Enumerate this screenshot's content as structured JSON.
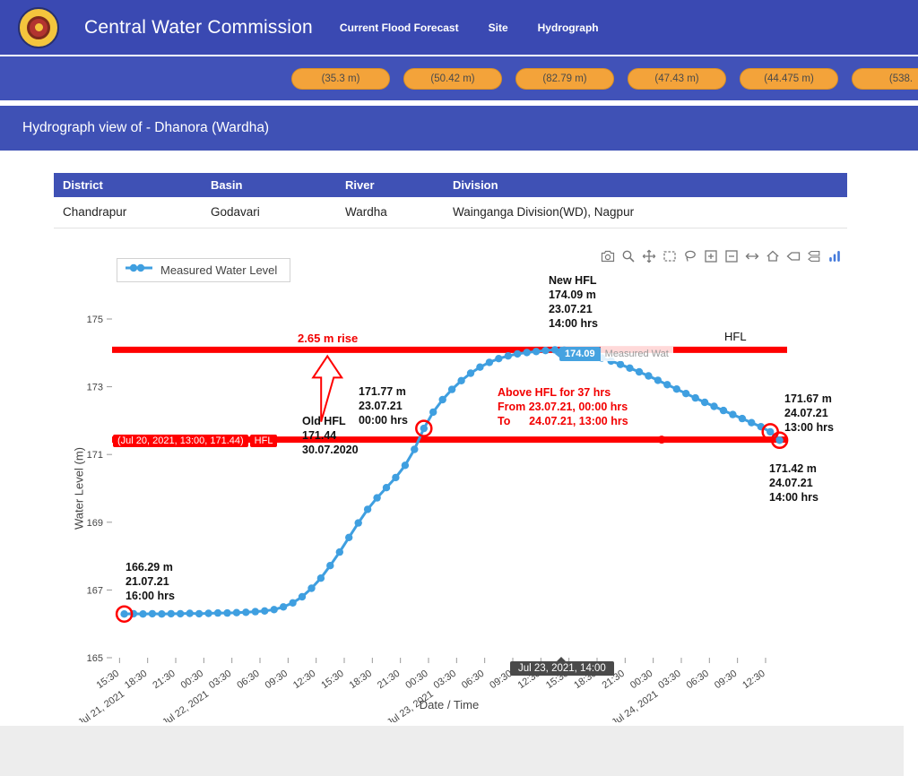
{
  "header": {
    "title": "Central Water Commission",
    "nav": [
      {
        "label": "Current Flood Forecast"
      },
      {
        "label": "Site"
      },
      {
        "label": "Hydrograph"
      }
    ]
  },
  "stations_bar": {
    "buttons": [
      "(35.3 m)",
      "(50.42 m)",
      "(82.79 m)",
      "(47.43 m)",
      "(44.475 m)",
      "(538."
    ]
  },
  "page": {
    "subtitle": "Hydrograph view of - Dhanora (Wardha)"
  },
  "info_table": {
    "headers": [
      "District",
      "Basin",
      "River",
      "Division"
    ],
    "rows": [
      [
        "Chandrapur",
        "Godavari",
        "Wardha",
        "Wainganga Division(WD), Nagpur"
      ]
    ]
  },
  "legend": {
    "label": "Measured Water Level"
  },
  "modebar": {
    "icons": [
      "camera",
      "zoom",
      "pan",
      "box-select",
      "lasso-select",
      "zoom-in",
      "zoom-out",
      "autoscale",
      "reset-axes",
      "hover-closest",
      "hover-compare",
      "plotly-logo"
    ]
  },
  "annotations": {
    "new_hfl": {
      "text": "New HFL\n174.09 m\n23.07.21\n14:00 hrs"
    },
    "rise": {
      "text": "2.65 m rise"
    },
    "crossing": {
      "text": "171.77 m\n23.07.21\n00:00 hrs"
    },
    "old_hfl": {
      "text": "Old HFL\n171.44\n30.07.2020"
    },
    "above_hfl": {
      "text": "Above HFL for 37 hrs\nFrom 23.07.21, 00:00 hrs\nTo      24.07.21, 13:00 hrs"
    },
    "hfl": {
      "text": "HFL"
    },
    "end_1300": {
      "text": "171.67 m\n24.07.21\n13:00 hrs"
    },
    "end_1400": {
      "text": "171.42 m\n24.07.21\n14:00 hrs"
    },
    "start": {
      "text": "166.29 m\n21.07.21\n16:00 hrs"
    }
  },
  "hover_labels": {
    "hfl_hover": {
      "text": "(Jul 20, 2021, 13:00, 171.44)",
      "name": "HFL"
    },
    "peak_hover": {
      "value": "174.09",
      "name": "Measured Wat"
    },
    "axis_tooltip": {
      "text": "Jul 23, 2021, 14:00"
    }
  },
  "chart_data": {
    "type": "line",
    "title": "",
    "xlabel": "Date / Time",
    "ylabel": "Water Level (m)",
    "ylim": [
      165,
      175
    ],
    "yticks": [
      165,
      167,
      169,
      171,
      173,
      175
    ],
    "x_unit": "hours since Jul 21, 2021 15:30",
    "xlim": [
      -0.8,
      71.3
    ],
    "grid": false,
    "legend_position": "top-left",
    "xticks": [
      [
        0,
        "15:30"
      ],
      [
        3,
        "18:30"
      ],
      [
        6,
        "21:30"
      ],
      [
        9,
        "00:30"
      ],
      [
        12,
        "03:30"
      ],
      [
        15,
        "06:30"
      ],
      [
        18,
        "09:30"
      ],
      [
        21,
        "12:30"
      ],
      [
        24,
        "15:30"
      ],
      [
        27,
        "18:30"
      ],
      [
        30,
        "21:30"
      ],
      [
        33,
        "00:30"
      ],
      [
        36,
        "03:30"
      ],
      [
        39,
        "06:30"
      ],
      [
        42,
        "09:30"
      ],
      [
        45,
        "12:30"
      ],
      [
        48,
        "15:30"
      ],
      [
        51,
        "18:30"
      ],
      [
        54,
        "21:30"
      ],
      [
        57,
        "00:30"
      ],
      [
        60,
        "03:30"
      ],
      [
        63,
        "06:30"
      ],
      [
        66,
        "09:30"
      ],
      [
        69,
        "12:30"
      ]
    ],
    "xdates": [
      [
        0,
        "Jul 21, 2021"
      ],
      [
        9,
        "Jul 22, 2021"
      ],
      [
        33,
        "Jul 23, 2021"
      ],
      [
        57,
        "Jul 24, 2021"
      ]
    ],
    "series": [
      {
        "name": "Measured Water Level",
        "color": "#3f9fe0",
        "points": [
          [
            0.5,
            166.29
          ],
          [
            1.5,
            166.3
          ],
          [
            2.5,
            166.29
          ],
          [
            3.5,
            166.3
          ],
          [
            4.5,
            166.29
          ],
          [
            5.5,
            166.3
          ],
          [
            6.5,
            166.3
          ],
          [
            7.5,
            166.31
          ],
          [
            8.5,
            166.3
          ],
          [
            9.5,
            166.31
          ],
          [
            10.5,
            166.32
          ],
          [
            11.5,
            166.32
          ],
          [
            12.5,
            166.33
          ],
          [
            13.5,
            166.34
          ],
          [
            14.5,
            166.36
          ],
          [
            15.5,
            166.38
          ],
          [
            16.5,
            166.42
          ],
          [
            17.5,
            166.5
          ],
          [
            18.5,
            166.62
          ],
          [
            19.5,
            166.8
          ],
          [
            20.5,
            167.05
          ],
          [
            21.5,
            167.35
          ],
          [
            22.5,
            167.72
          ],
          [
            23.5,
            168.12
          ],
          [
            24.5,
            168.55
          ],
          [
            25.5,
            168.98
          ],
          [
            26.5,
            169.38
          ],
          [
            27.5,
            169.72
          ],
          [
            28.5,
            170.02
          ],
          [
            29.5,
            170.32
          ],
          [
            30.5,
            170.68
          ],
          [
            31.5,
            171.15
          ],
          [
            32.5,
            171.77
          ],
          [
            33.5,
            172.25
          ],
          [
            34.5,
            172.62
          ],
          [
            35.5,
            172.92
          ],
          [
            36.5,
            173.18
          ],
          [
            37.5,
            173.4
          ],
          [
            38.5,
            173.58
          ],
          [
            39.5,
            173.72
          ],
          [
            40.5,
            173.83
          ],
          [
            41.5,
            173.91
          ],
          [
            42.5,
            173.97
          ],
          [
            43.5,
            174.01
          ],
          [
            44.5,
            174.04
          ],
          [
            45.5,
            174.07
          ],
          [
            46.5,
            174.09
          ],
          [
            47.5,
            174.08
          ],
          [
            48.5,
            174.05
          ],
          [
            49.5,
            174.0
          ],
          [
            50.5,
            173.93
          ],
          [
            51.5,
            173.85
          ],
          [
            52.5,
            173.76
          ],
          [
            53.5,
            173.66
          ],
          [
            54.5,
            173.55
          ],
          [
            55.5,
            173.44
          ],
          [
            56.5,
            173.32
          ],
          [
            57.5,
            173.19
          ],
          [
            58.5,
            173.06
          ],
          [
            59.5,
            172.93
          ],
          [
            60.5,
            172.8
          ],
          [
            61.5,
            172.67
          ],
          [
            62.5,
            172.54
          ],
          [
            63.5,
            172.42
          ],
          [
            64.5,
            172.3
          ],
          [
            65.5,
            172.18
          ],
          [
            66.5,
            172.06
          ],
          [
            67.5,
            171.94
          ],
          [
            68.5,
            171.82
          ],
          [
            69.5,
            171.67
          ],
          [
            70.5,
            171.42
          ]
        ]
      }
    ],
    "hfl_lines": [
      {
        "name": "HFL",
        "value": 174.09,
        "color": "#ff0000"
      },
      {
        "name": "Old HFL",
        "value": 171.44,
        "color": "#ff0000"
      }
    ],
    "highlight_rings": [
      [
        0.5,
        166.29
      ],
      [
        32.5,
        171.77
      ],
      [
        69.5,
        171.67
      ],
      [
        70.5,
        171.42
      ]
    ],
    "hover_point_on_hfl": {
      "t": 57.9,
      "value": 171.44
    },
    "rise_arrow": {
      "t": 22.2,
      "from": 171.44,
      "to": 174.09
    }
  }
}
